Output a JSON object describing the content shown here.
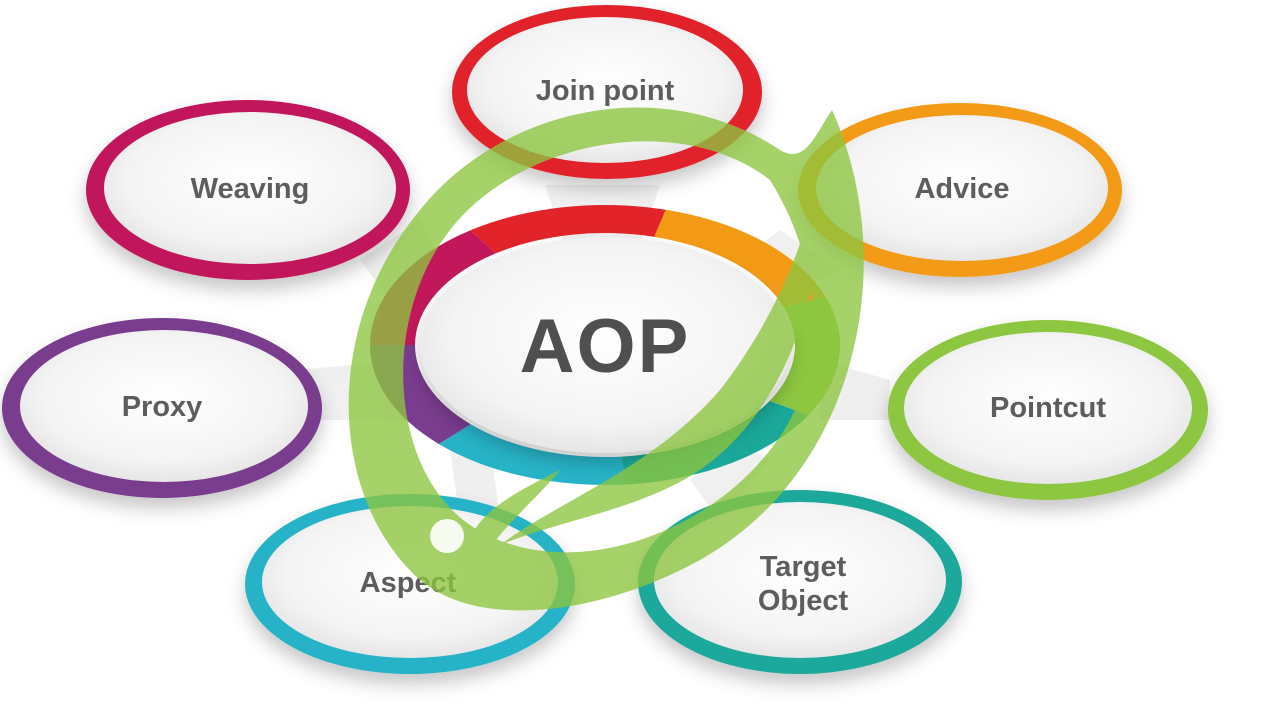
{
  "center": {
    "label": "AOP"
  },
  "nodes": [
    {
      "id": "join-point",
      "label": "Join point",
      "color": "#e2242a"
    },
    {
      "id": "advice",
      "label": "Advice",
      "color": "#f39a15"
    },
    {
      "id": "pointcut",
      "label": "Pointcut",
      "color": "#8dc63f"
    },
    {
      "id": "target-object",
      "label_lines": [
        "Target",
        "Object"
      ],
      "color": "#1aa89a"
    },
    {
      "id": "aspect",
      "label": "Aspect",
      "color": "#27b3c7"
    },
    {
      "id": "proxy",
      "label": "Proxy",
      "color": "#7a3c8e"
    },
    {
      "id": "weaving",
      "label": "Weaving",
      "color": "#c2185b"
    }
  ],
  "overlay": {
    "color": "#8dc63f",
    "icon": "spring-leaf-icon"
  }
}
